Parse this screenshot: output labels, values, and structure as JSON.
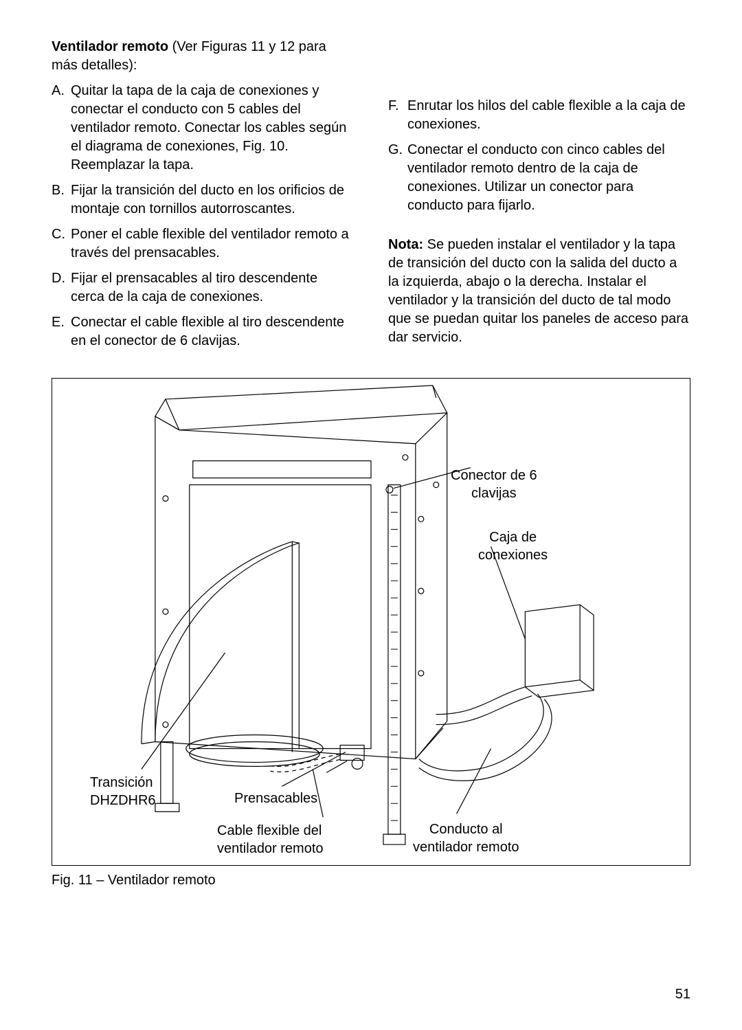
{
  "page_number": "51",
  "heading_bold": "Ventilador remoto",
  "heading_rest": " (Ver Figuras 11 y 12 para más detalles):",
  "left_items": [
    {
      "marker": "A.",
      "text": "Quitar la tapa de la caja de conexiones y conectar el conducto con 5 cables del ventilador remoto. Conectar los cables según el diagrama de conexiones, Fig. 10. Reemplazar la tapa."
    },
    {
      "marker": "B.",
      "text": "Fijar la transición del ducto en los orificios de montaje con tornillos autorroscantes."
    },
    {
      "marker": "C.",
      "text": "Poner el cable flexible del ventilador remoto a través del prensacables."
    },
    {
      "marker": "D.",
      "text": "Fijar el prensacables al tiro descendente cerca de la caja de conexiones."
    },
    {
      "marker": "E.",
      "text": "Conectar el cable flexible al tiro descendente en el conector de 6 clavijas."
    }
  ],
  "right_items": [
    {
      "marker": "F.",
      "text": "Enrutar los hilos del cable flexible a la caja de conexiones."
    },
    {
      "marker": "G.",
      "text": "Conectar el conducto con cinco cables del ventilador remoto dentro de la caja de conexiones. Utilizar un conector para conducto para fijarlo."
    }
  ],
  "note_bold": "Nota:",
  "note_text": " Se pueden instalar el ventilador y la tapa de transición del ducto con la salida del ducto a la izquierda, abajo o la derecha. Instalar el ventilador y la transición del ducto de tal modo que se puedan quitar los paneles de acceso para dar servicio.",
  "figure_caption": "Fig. 11 – Ventilador remoto",
  "diagram": {
    "stroke": "#000000",
    "stroke_width": 1.2,
    "labels": {
      "connector6": "Conector de 6\nclavijas",
      "junction_box": "Caja de\nconexiones",
      "transition": "Transición\nDHZDHR6",
      "strain_relief": "Prensacables",
      "flex_cable": "Cable flexible del\nventilador remoto",
      "conduit": "Conducto al\nventilador remoto"
    }
  }
}
